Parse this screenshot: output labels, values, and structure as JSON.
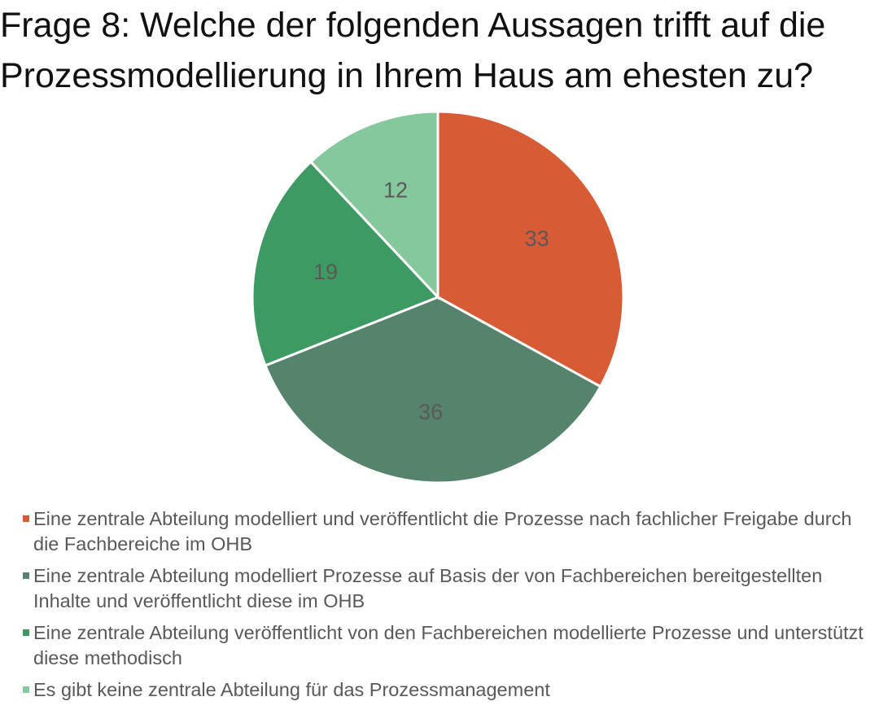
{
  "chart_data": {
    "type": "pie",
    "title": "Frage 8: Welche der folgenden Aussagen trifft auf die Prozessmodellierung in  Ihrem Haus am ehesten zu?",
    "title_lines": [
      "Frage 8: Welche der folgenden Aussagen trifft auf die",
      "Prozessmodellierung in  Ihrem Haus am ehesten zu?"
    ],
    "legend_position": "bottom",
    "slices": [
      {
        "label": "Eine zentrale Abteilung modelliert und veröffentlicht die Prozesse nach fachlicher Freigabe durch die Fachbereiche im OHB",
        "value": 33,
        "color": "#D75B35"
      },
      {
        "label": "Eine zentrale Abteilung modelliert Prozesse auf Basis der von Fachbereichen bereitgestellten Inhalte und veröffentlicht diese im OHB",
        "value": 36,
        "color": "#56836C"
      },
      {
        "label": "Eine zentrale Abteilung veröffentlicht von den Fachbereichen modellierte Prozesse und unterstützt diese methodisch",
        "value": 19,
        "color": "#3E9A63"
      },
      {
        "label": "Es gibt keine zentrale Abteilung für das Prozessmanagement",
        "value": 12,
        "color": "#85C89B"
      }
    ]
  }
}
